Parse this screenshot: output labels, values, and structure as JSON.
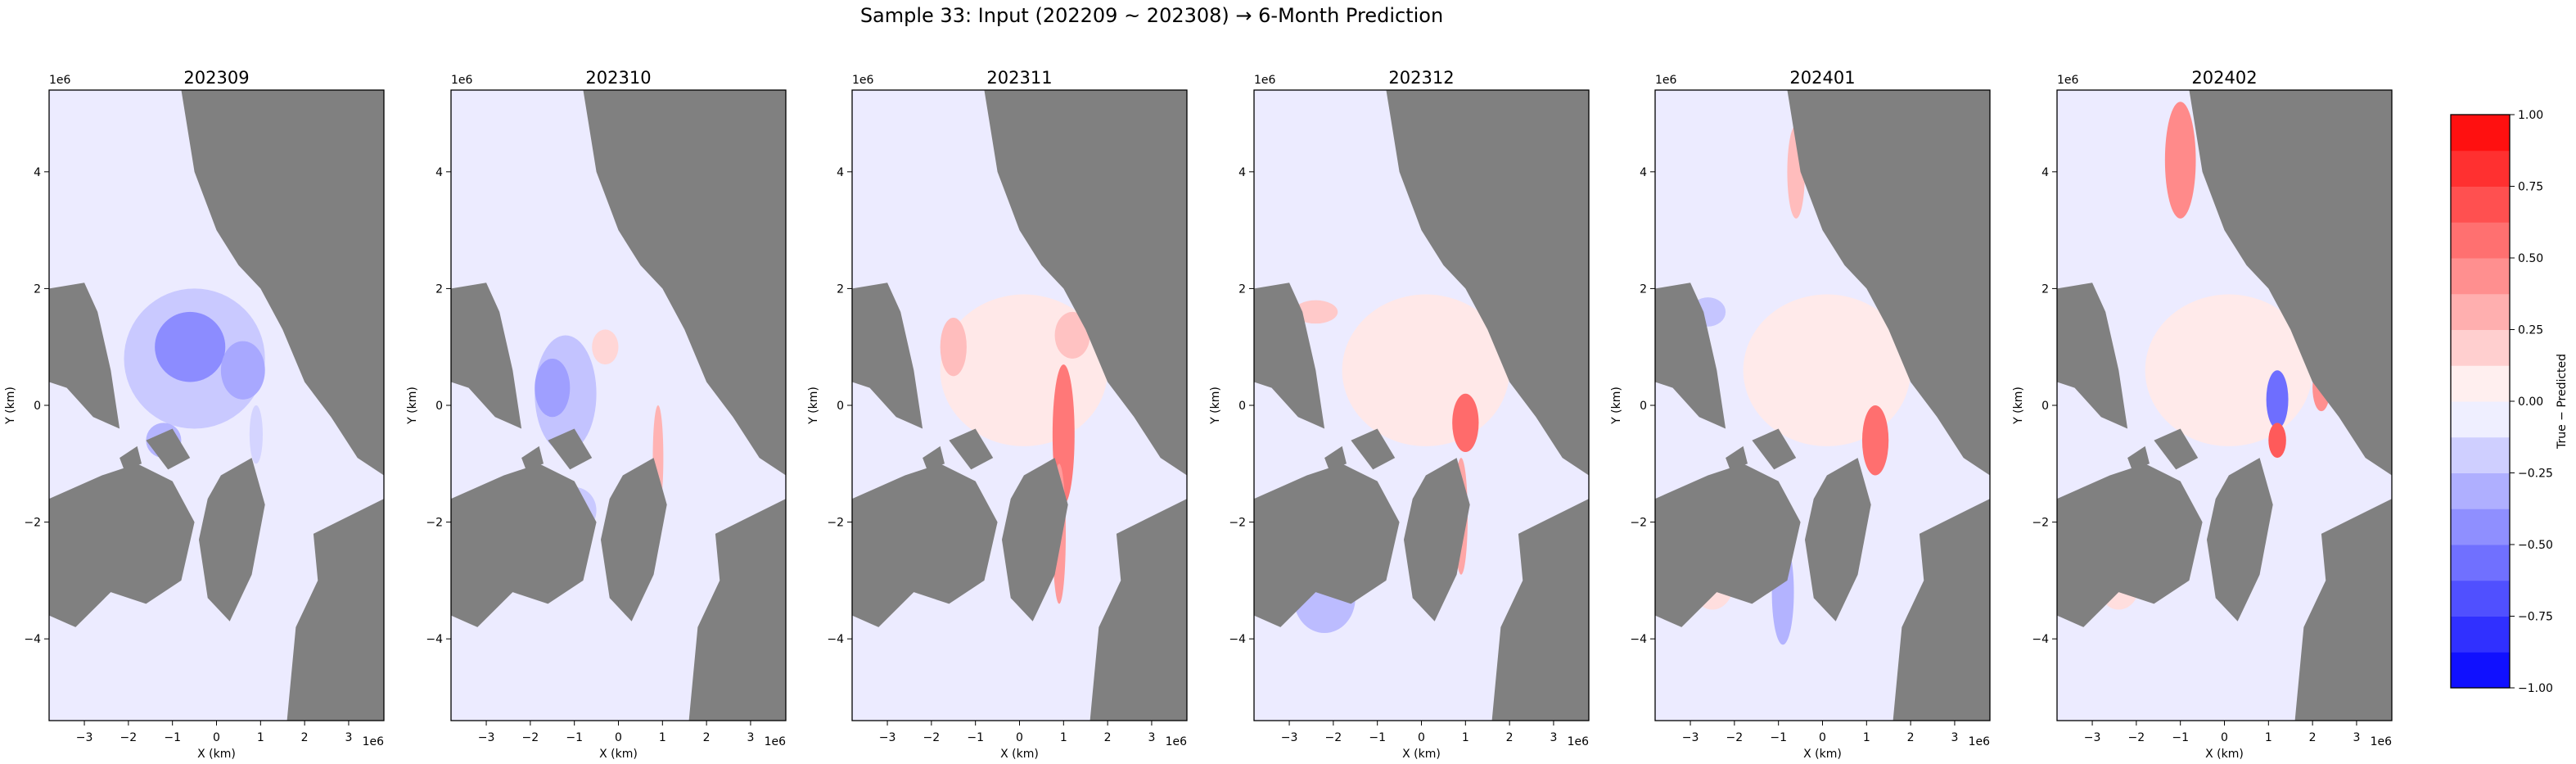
{
  "figure": {
    "suptitle": "Sample 33: Input (202209 ~ 202308) → 6-Month Prediction"
  },
  "chart_data": {
    "type": "heatmap",
    "panels": [
      {
        "title": "202309"
      },
      {
        "title": "202310"
      },
      {
        "title": "202311"
      },
      {
        "title": "202312"
      },
      {
        "title": "202401"
      },
      {
        "title": "202402"
      }
    ],
    "xlabel": "X (km)",
    "ylabel": "Y (km)",
    "x_ticks": [
      "−3",
      "−2",
      "−1",
      "0",
      "1",
      "2",
      "3"
    ],
    "x_tick_values": [
      -3,
      -2,
      -1,
      0,
      1,
      2,
      3
    ],
    "y_ticks": [
      "−4",
      "−2",
      "0",
      "2",
      "4"
    ],
    "y_tick_values": [
      -4,
      -2,
      0,
      2,
      4
    ],
    "offset_label": "1e6",
    "xlim": [
      -3.8,
      3.8
    ],
    "ylim": [
      -5.4,
      5.4
    ],
    "land_color": "#808080",
    "colorbar": {
      "label": "True − Predicted",
      "ticks": [
        "1.00",
        "0.75",
        "0.50",
        "0.25",
        "0.00",
        "−0.25",
        "−0.50",
        "−0.75",
        "−1.00"
      ],
      "tick_values": [
        1.0,
        0.75,
        0.5,
        0.25,
        0.0,
        -0.25,
        -0.5,
        -0.75,
        -1.0
      ],
      "range": [
        -1.0,
        1.0
      ],
      "cmap": "bwr",
      "levels": 16
    }
  }
}
